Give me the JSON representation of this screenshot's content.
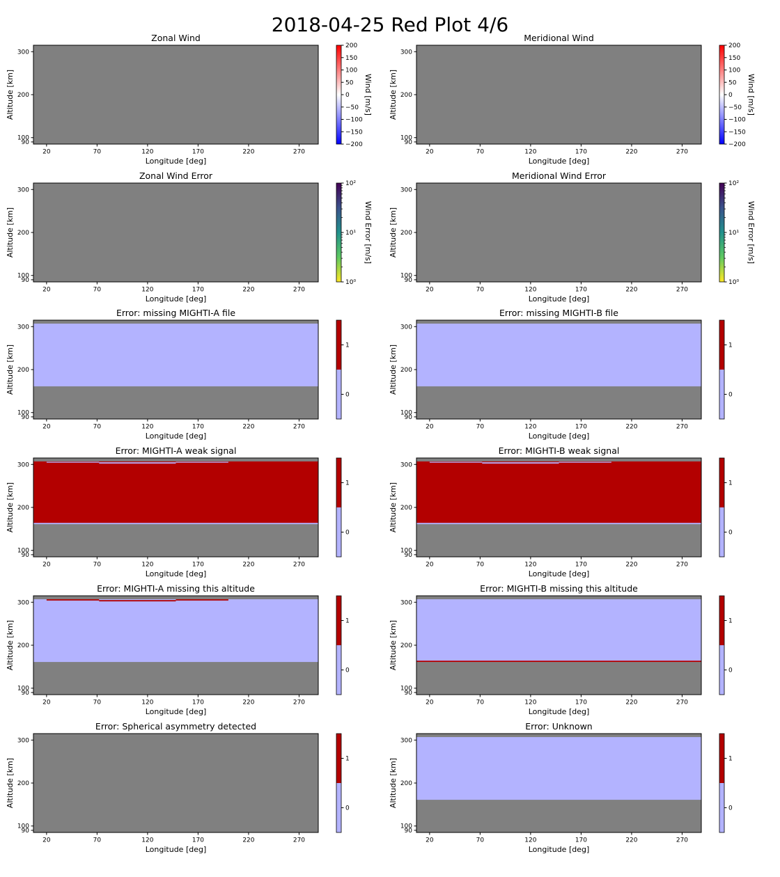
{
  "figure": {
    "title": "2018-04-25 Red Plot 4/6"
  },
  "colors": {
    "missing_data": "#808080",
    "flag_off": "#b3b3ff",
    "flag_on": "#b30000",
    "wind_low": "#0000ff",
    "wind_mid": "#ffffff",
    "wind_high": "#ff0000",
    "error_cmap": [
      "#440154",
      "#3b528b",
      "#21918c",
      "#5ec962",
      "#fde725"
    ]
  },
  "chart_data": [
    {
      "type": "heatmap",
      "title": "Zonal Wind",
      "xlabel": "Longitude [deg]",
      "ylabel": "Altitude [km]",
      "xticks": [
        20,
        70,
        120,
        170,
        220,
        270
      ],
      "yticks": [
        90,
        100,
        200,
        300
      ],
      "xlim": [
        7,
        289
      ],
      "ylim": [
        85,
        315
      ],
      "colorbar": {
        "label": "Wind [m/s]",
        "kind": "wind",
        "ticks": [
          "200",
          "150",
          "100",
          "50",
          "0",
          "−50",
          "−100",
          "−150",
          "−200"
        ]
      },
      "regions": []
    },
    {
      "type": "heatmap",
      "title": "Meridional Wind",
      "xlabel": "Longitude [deg]",
      "ylabel": "Altitude [km]",
      "xticks": [
        20,
        70,
        120,
        170,
        220,
        270
      ],
      "yticks": [
        90,
        100,
        200,
        300
      ],
      "xlim": [
        7,
        289
      ],
      "ylim": [
        85,
        315
      ],
      "colorbar": {
        "label": "Wind [m/s]",
        "kind": "wind",
        "ticks": [
          "200",
          "150",
          "100",
          "50",
          "0",
          "−50",
          "−100",
          "−150",
          "−200"
        ]
      },
      "regions": []
    },
    {
      "type": "heatmap",
      "title": "Zonal Wind Error",
      "xlabel": "Longitude [deg]",
      "ylabel": "Altitude [km]",
      "xticks": [
        20,
        70,
        120,
        170,
        220,
        270
      ],
      "yticks": [
        90,
        100,
        200,
        300
      ],
      "xlim": [
        7,
        289
      ],
      "ylim": [
        85,
        315
      ],
      "colorbar": {
        "label": "Wind Error [m/s]",
        "kind": "log",
        "ticks": [
          "10²",
          "10¹",
          "10⁰"
        ]
      },
      "regions": []
    },
    {
      "type": "heatmap",
      "title": "Meridional Wind Error",
      "xlabel": "Longitude [deg]",
      "ylabel": "Altitude [km]",
      "xticks": [
        20,
        70,
        120,
        170,
        220,
        270
      ],
      "yticks": [
        90,
        100,
        200,
        300
      ],
      "xlim": [
        7,
        289
      ],
      "ylim": [
        85,
        315
      ],
      "colorbar": {
        "label": "Wind Error [m/s]",
        "kind": "log",
        "ticks": [
          "10²",
          "10¹",
          "10⁰"
        ]
      },
      "regions": []
    },
    {
      "type": "heatmap",
      "title": "Error: missing MIGHTI-A file",
      "xlabel": "Longitude [deg]",
      "ylabel": "Altitude [km]",
      "xticks": [
        20,
        70,
        120,
        170,
        220,
        270
      ],
      "yticks": [
        90,
        100,
        200,
        300
      ],
      "xlim": [
        7,
        289
      ],
      "ylim": [
        85,
        315
      ],
      "colorbar": {
        "label": "",
        "kind": "flag",
        "ticks": [
          "1",
          "0"
        ]
      },
      "regions": [
        {
          "x": [
            7,
            289
          ],
          "y": [
            161,
            307
          ],
          "value": 0
        }
      ]
    },
    {
      "type": "heatmap",
      "title": "Error: missing MIGHTI-B file",
      "xlabel": "Longitude [deg]",
      "ylabel": "Altitude [km]",
      "xticks": [
        20,
        70,
        120,
        170,
        220,
        270
      ],
      "yticks": [
        90,
        100,
        200,
        300
      ],
      "xlim": [
        7,
        289
      ],
      "ylim": [
        85,
        315
      ],
      "colorbar": {
        "label": "",
        "kind": "flag",
        "ticks": [
          "1",
          "0"
        ]
      },
      "regions": [
        {
          "x": [
            7,
            289
          ],
          "y": [
            161,
            307
          ],
          "value": 0
        }
      ]
    },
    {
      "type": "heatmap",
      "title": "Error: MIGHTI-A weak signal",
      "xlabel": "Longitude [deg]",
      "ylabel": "Altitude [km]",
      "xticks": [
        20,
        70,
        120,
        170,
        220,
        270
      ],
      "yticks": [
        90,
        100,
        200,
        300
      ],
      "xlim": [
        7,
        289
      ],
      "ylim": [
        85,
        315
      ],
      "colorbar": {
        "label": "",
        "kind": "flag",
        "ticks": [
          "1",
          "0"
        ]
      },
      "regions": [
        {
          "x": [
            7,
            289
          ],
          "y": [
            161,
            307
          ],
          "value": 0
        },
        {
          "x": [
            7,
            289
          ],
          "y": [
            164,
            307
          ],
          "value": 1
        },
        {
          "x": [
            20,
            72
          ],
          "y": [
            304,
            306
          ],
          "value": 0
        },
        {
          "x": [
            72,
            148
          ],
          "y": [
            302,
            305
          ],
          "value": 0
        },
        {
          "x": [
            148,
            200
          ],
          "y": [
            304,
            306
          ],
          "value": 0
        }
      ]
    },
    {
      "type": "heatmap",
      "title": "Error: MIGHTI-B weak signal",
      "xlabel": "Longitude [deg]",
      "ylabel": "Altitude [km]",
      "xticks": [
        20,
        70,
        120,
        170,
        220,
        270
      ],
      "yticks": [
        90,
        100,
        200,
        300
      ],
      "xlim": [
        7,
        289
      ],
      "ylim": [
        85,
        315
      ],
      "colorbar": {
        "label": "",
        "kind": "flag",
        "ticks": [
          "1",
          "0"
        ]
      },
      "regions": [
        {
          "x": [
            7,
            289
          ],
          "y": [
            161,
            307
          ],
          "value": 0
        },
        {
          "x": [
            7,
            289
          ],
          "y": [
            164,
            307
          ],
          "value": 1
        },
        {
          "x": [
            20,
            72
          ],
          "y": [
            304,
            306
          ],
          "value": 0
        },
        {
          "x": [
            72,
            148
          ],
          "y": [
            302,
            305
          ],
          "value": 0
        },
        {
          "x": [
            148,
            200
          ],
          "y": [
            304,
            306
          ],
          "value": 0
        }
      ]
    },
    {
      "type": "heatmap",
      "title": "Error: MIGHTI-A missing this altitude",
      "xlabel": "Longitude [deg]",
      "ylabel": "Altitude [km]",
      "xticks": [
        20,
        70,
        120,
        170,
        220,
        270
      ],
      "yticks": [
        90,
        100,
        200,
        300
      ],
      "xlim": [
        7,
        289
      ],
      "ylim": [
        85,
        315
      ],
      "colorbar": {
        "label": "",
        "kind": "flag",
        "ticks": [
          "1",
          "0"
        ]
      },
      "regions": [
        {
          "x": [
            7,
            289
          ],
          "y": [
            161,
            307
          ],
          "value": 0
        },
        {
          "x": [
            20,
            72
          ],
          "y": [
            304,
            307
          ],
          "value": 1
        },
        {
          "x": [
            72,
            148
          ],
          "y": [
            302,
            305
          ],
          "value": 1
        },
        {
          "x": [
            148,
            200
          ],
          "y": [
            304,
            307
          ],
          "value": 1
        }
      ]
    },
    {
      "type": "heatmap",
      "title": "Error: MIGHTI-B missing this altitude",
      "xlabel": "Longitude [deg]",
      "ylabel": "Altitude [km]",
      "xticks": [
        20,
        70,
        120,
        170,
        220,
        270
      ],
      "yticks": [
        90,
        100,
        200,
        300
      ],
      "xlim": [
        7,
        289
      ],
      "ylim": [
        85,
        315
      ],
      "colorbar": {
        "label": "",
        "kind": "flag",
        "ticks": [
          "1",
          "0"
        ]
      },
      "regions": [
        {
          "x": [
            7,
            289
          ],
          "y": [
            161,
            307
          ],
          "value": 0
        },
        {
          "x": [
            7,
            289
          ],
          "y": [
            161,
            164
          ],
          "value": 1
        }
      ]
    },
    {
      "type": "heatmap",
      "title": "Error: Spherical asymmetry detected",
      "xlabel": "Longitude [deg]",
      "ylabel": "Altitude [km]",
      "xticks": [
        20,
        70,
        120,
        170,
        220,
        270
      ],
      "yticks": [
        90,
        100,
        200,
        300
      ],
      "xlim": [
        7,
        289
      ],
      "ylim": [
        85,
        315
      ],
      "colorbar": {
        "label": "",
        "kind": "flag",
        "ticks": [
          "1",
          "0"
        ]
      },
      "regions": []
    },
    {
      "type": "heatmap",
      "title": "Error: Unknown",
      "xlabel": "Longitude [deg]",
      "ylabel": "Altitude [km]",
      "xticks": [
        20,
        70,
        120,
        170,
        220,
        270
      ],
      "yticks": [
        90,
        100,
        200,
        300
      ],
      "xlim": [
        7,
        289
      ],
      "ylim": [
        85,
        315
      ],
      "colorbar": {
        "label": "",
        "kind": "flag",
        "ticks": [
          "1",
          "0"
        ]
      },
      "regions": [
        {
          "x": [
            7,
            289
          ],
          "y": [
            161,
            307
          ],
          "value": 0
        }
      ]
    }
  ]
}
